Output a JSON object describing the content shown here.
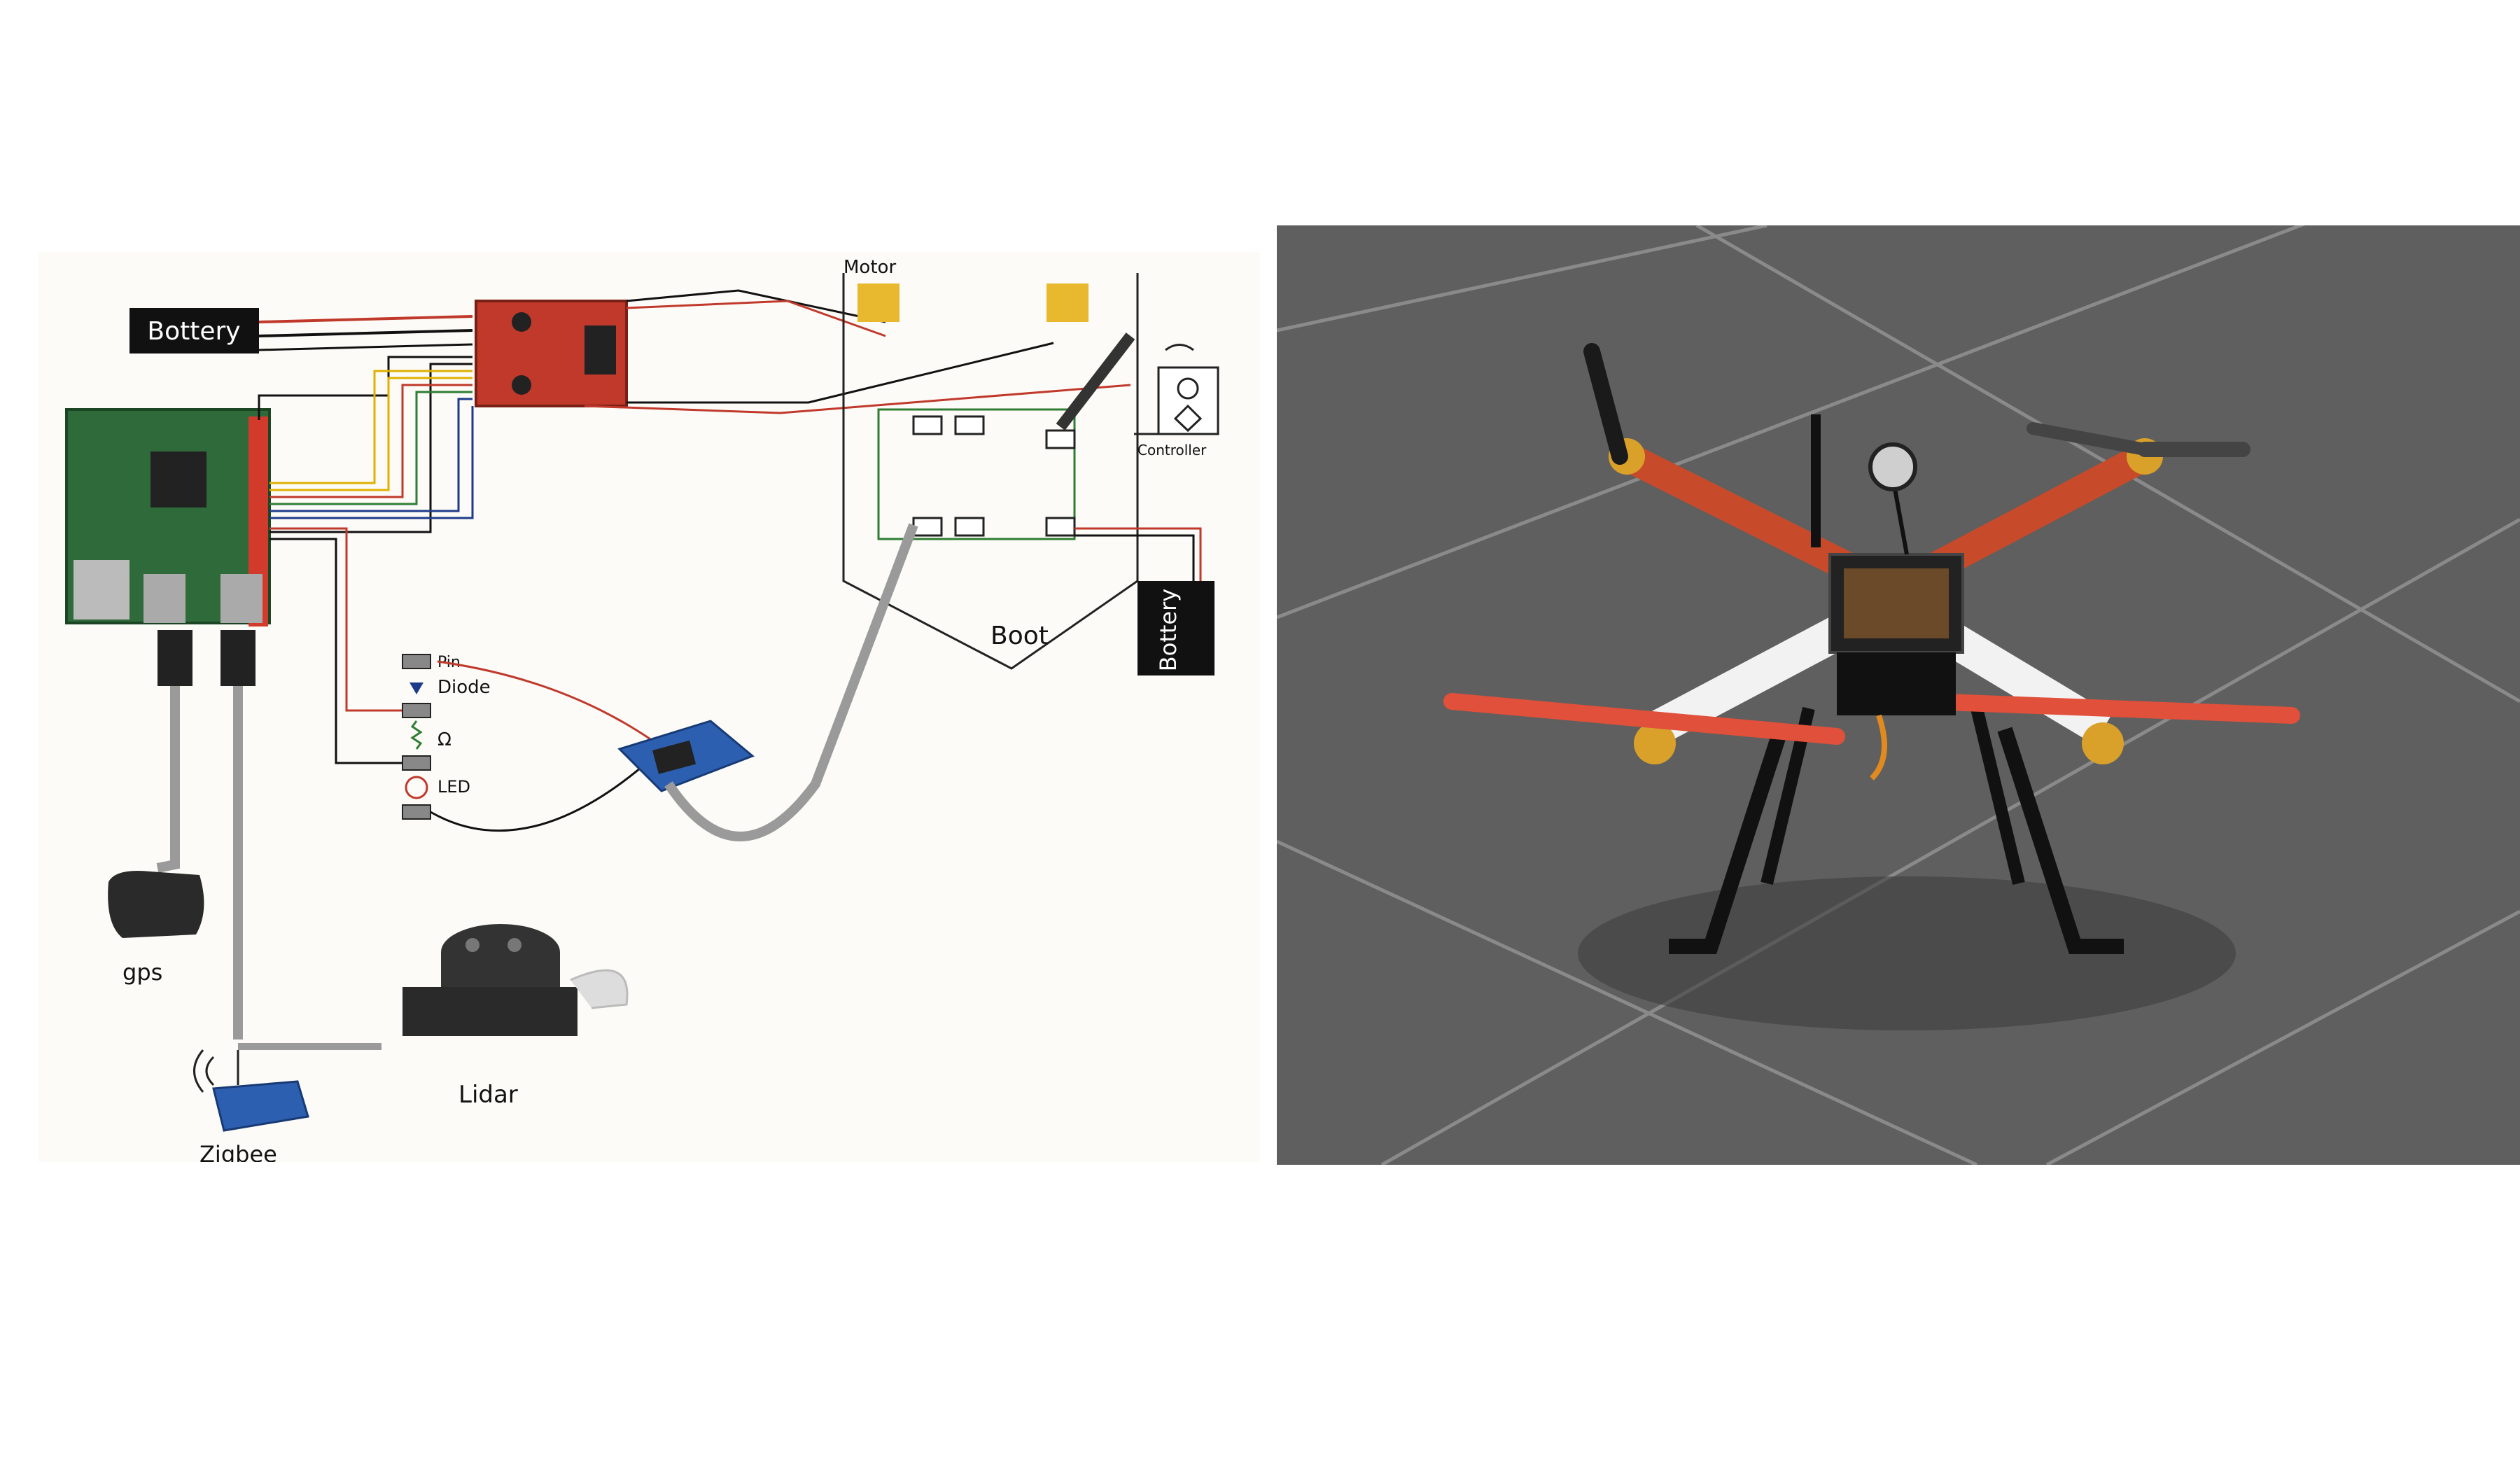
{
  "diagram": {
    "labels": {
      "battery_top": "Bottery",
      "battery_boat": "Bottery",
      "motor": "Motor",
      "controller": "Controller",
      "boat": "Boot",
      "pin": "Pin",
      "diode": "Diode",
      "resistor": "Ω",
      "led": "LED",
      "gps": "gps",
      "lidar": "Lidar",
      "zigbee": "Zigbee"
    },
    "colors": {
      "wire_red": "#c0392b",
      "wire_black": "#111111",
      "wire_yellow": "#e0b000",
      "wire_blue": "#1e3a8a",
      "wire_green": "#2e7d32",
      "board_pi": "#2f6b3a",
      "driver_board": "#c0392b",
      "motor_pad": "#e8b92f",
      "cable_gray": "#9a9a9a"
    }
  },
  "photo": {
    "subject": "quadcopter-drone",
    "colors": {
      "floor": "#5f5f5f",
      "frame_arm": "#c74a2a",
      "propeller_red": "#e0503a",
      "propeller_black": "#1a1a1a",
      "landing_gear": "#111111"
    }
  }
}
